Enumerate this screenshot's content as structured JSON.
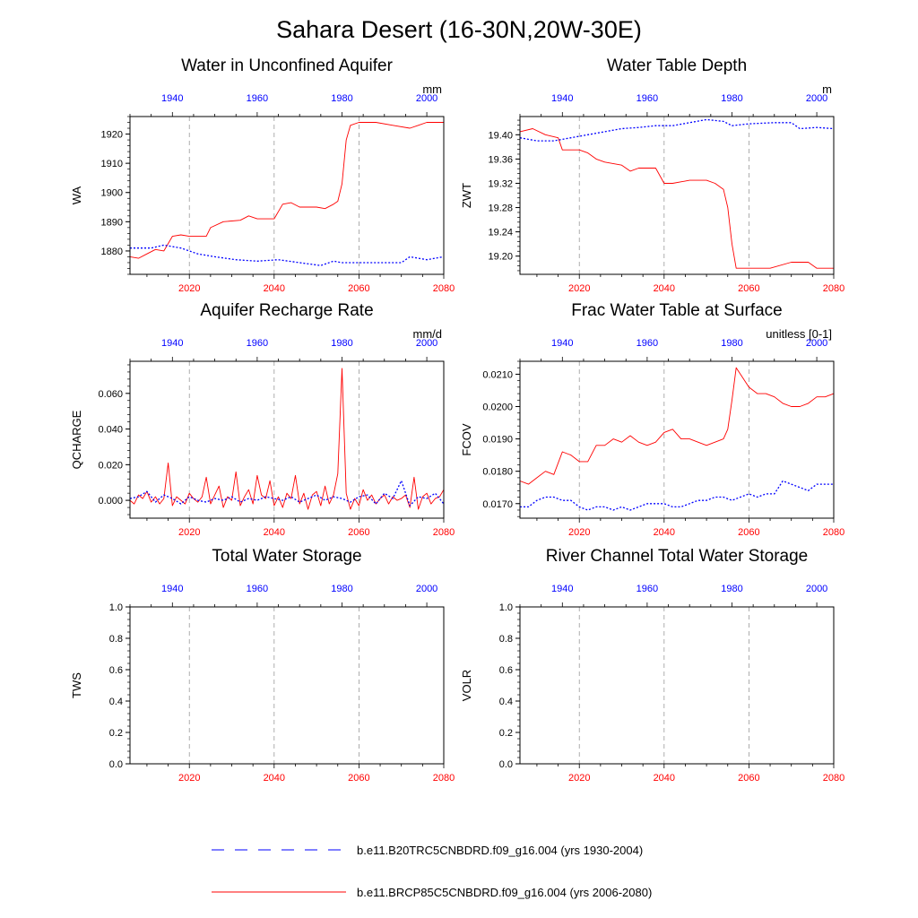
{
  "title": "Sahara Desert (16-30N,20W-30E)",
  "colors": {
    "blue": "#0000ff",
    "red": "#ff0000",
    "grid": "#999999",
    "axis": "#000000"
  },
  "legend": {
    "items": [
      {
        "label": "b.e11.B20TRC5CNBDRD.f09_g16.004 (yrs 1930-2004)",
        "color": "#0000ff",
        "style": "dashed"
      },
      {
        "label": "b.e11.BRCP85C5CNBDRD.f09_g16.004 (yrs 2006-2080)",
        "color": "#ff0000",
        "style": "solid"
      }
    ]
  },
  "chart_data": [
    {
      "type": "line",
      "title": "Water in Unconfined Aquifer",
      "ylabel": "WA",
      "units": "mm",
      "xlim_bottom": [
        2006,
        2080
      ],
      "xlim_top": [
        1930,
        2004
      ],
      "ylim": [
        1872,
        1926
      ],
      "yticks": [
        1880,
        1890,
        1900,
        1910,
        1920
      ],
      "ytick_labels": [
        "1880",
        "1890",
        "1900",
        "1910",
        "1920"
      ],
      "x_bottom_ticks": [
        2020,
        2040,
        2060,
        2080
      ],
      "x_top_ticks": [
        1940,
        1960,
        1980,
        2000
      ],
      "series": [
        {
          "name": "b.e11.BRCP85C5CNBDRD.f09_g16.004 (yrs 2006-2080)",
          "axis": "bottom",
          "color": "#ff0000",
          "dashed": false,
          "x": [
            2006,
            2008,
            2010,
            2012,
            2014,
            2016,
            2018,
            2020,
            2024,
            2025,
            2028,
            2032,
            2034,
            2036,
            2040,
            2042,
            2044,
            2046,
            2048,
            2050,
            2052,
            2054,
            2055,
            2056,
            2057,
            2058,
            2060,
            2064,
            2068,
            2072,
            2074,
            2076,
            2080
          ],
          "y": [
            1878,
            1877.5,
            1879,
            1880.5,
            1880,
            1885,
            1885.5,
            1885,
            1885,
            1888,
            1890,
            1890.5,
            1892,
            1891,
            1891,
            1896,
            1896.5,
            1895,
            1895,
            1895,
            1894.5,
            1896,
            1897,
            1903,
            1918,
            1923,
            1924,
            1924,
            1923,
            1922,
            1923,
            1924,
            1924
          ]
        },
        {
          "name": "b.e11.B20TRC5CNBDRD.f09_g16.004 (yrs 1930-2004)",
          "axis": "top",
          "color": "#0000ff",
          "dashed": true,
          "x": [
            1930,
            1935,
            1938,
            1942,
            1946,
            1950,
            1955,
            1960,
            1965,
            1970,
            1975,
            1978,
            1980,
            1985,
            1990,
            1994,
            1996,
            2000,
            2004
          ],
          "y": [
            1881,
            1881,
            1882,
            1881,
            1879,
            1878,
            1877,
            1876.5,
            1877,
            1876,
            1875,
            1876.5,
            1876,
            1876,
            1876,
            1876,
            1878,
            1877,
            1878
          ]
        }
      ]
    },
    {
      "type": "line",
      "title": "Water Table Depth",
      "ylabel": "ZWT",
      "units": "m",
      "xlim_bottom": [
        2006,
        2080
      ],
      "xlim_top": [
        1930,
        2004
      ],
      "ylim": [
        19.17,
        19.43
      ],
      "yticks": [
        19.2,
        19.24,
        19.28,
        19.32,
        19.36,
        19.4
      ],
      "ytick_labels": [
        "19.20",
        "19.24",
        "19.28",
        "19.32",
        "19.36",
        "19.40"
      ],
      "x_bottom_ticks": [
        2020,
        2040,
        2060,
        2080
      ],
      "x_top_ticks": [
        1940,
        1960,
        1980,
        2000
      ],
      "series": [
        {
          "name": "b.e11.BRCP85C5CNBDRD.f09_g16.004 (yrs 2006-2080)",
          "axis": "bottom",
          "color": "#ff0000",
          "dashed": false,
          "x": [
            2006,
            2009,
            2012,
            2015,
            2016,
            2020,
            2022,
            2024,
            2026,
            2030,
            2032,
            2034,
            2038,
            2040,
            2042,
            2046,
            2050,
            2052,
            2054,
            2055,
            2056,
            2057,
            2058,
            2060,
            2065,
            2070,
            2074,
            2076,
            2080
          ],
          "y": [
            19.405,
            19.41,
            19.4,
            19.395,
            19.375,
            19.375,
            19.37,
            19.36,
            19.355,
            19.35,
            19.34,
            19.345,
            19.345,
            19.32,
            19.32,
            19.325,
            19.325,
            19.32,
            19.31,
            19.28,
            19.22,
            19.18,
            19.18,
            19.18,
            19.18,
            19.19,
            19.19,
            19.18,
            19.18
          ]
        },
        {
          "name": "b.e11.B20TRC5CNBDRD.f09_g16.004 (yrs 1930-2004)",
          "axis": "top",
          "color": "#0000ff",
          "dashed": true,
          "x": [
            1930,
            1934,
            1938,
            1942,
            1946,
            1950,
            1954,
            1958,
            1962,
            1966,
            1970,
            1974,
            1978,
            1980,
            1984,
            1990,
            1994,
            1996,
            2000,
            2004
          ],
          "y": [
            19.395,
            19.39,
            19.39,
            19.395,
            19.4,
            19.405,
            19.41,
            19.412,
            19.415,
            19.415,
            19.42,
            19.425,
            19.422,
            19.415,
            19.418,
            19.42,
            19.42,
            19.41,
            19.412,
            19.41
          ]
        }
      ]
    },
    {
      "type": "line",
      "title": "Aquifer Recharge Rate",
      "ylabel": "QCHARGE",
      "units": "mm/d",
      "xlim_bottom": [
        2006,
        2080
      ],
      "xlim_top": [
        1930,
        2004
      ],
      "ylim": [
        -0.01,
        0.078
      ],
      "yticks": [
        0.0,
        0.02,
        0.04,
        0.06
      ],
      "ytick_labels": [
        "0.000",
        "0.020",
        "0.040",
        "0.060"
      ],
      "x_bottom_ticks": [
        2020,
        2040,
        2060,
        2080
      ],
      "x_top_ticks": [
        1940,
        1960,
        1980,
        2000
      ],
      "series": [
        {
          "name": "b.e11.BRCP85C5CNBDRD.f09_g16.004 (yrs 2006-2080)",
          "axis": "bottom",
          "color": "#ff0000",
          "dashed": false,
          "x": [
            2006,
            2007,
            2008,
            2009,
            2010,
            2011,
            2012,
            2013,
            2014,
            2015,
            2016,
            2017,
            2018,
            2019,
            2020,
            2021,
            2022,
            2023,
            2024,
            2025,
            2026,
            2027,
            2028,
            2029,
            2030,
            2031,
            2032,
            2033,
            2034,
            2035,
            2036,
            2037,
            2038,
            2039,
            2040,
            2041,
            2042,
            2043,
            2044,
            2045,
            2046,
            2047,
            2048,
            2049,
            2050,
            2051,
            2052,
            2053,
            2054,
            2055,
            2056,
            2057,
            2058,
            2059,
            2060,
            2061,
            2062,
            2063,
            2064,
            2065,
            2066,
            2067,
            2068,
            2069,
            2070,
            2071,
            2072,
            2073,
            2074,
            2075,
            2076,
            2077,
            2078,
            2079,
            2080
          ],
          "y": [
            0.0,
            -0.002,
            0.003,
            0.001,
            0.005,
            -0.001,
            0.002,
            -0.002,
            0.001,
            0.021,
            -0.003,
            0.002,
            0.0,
            -0.002,
            0.004,
            0.001,
            -0.001,
            0.002,
            0.013,
            -0.002,
            0.003,
            0.008,
            -0.004,
            0.002,
            0.0,
            0.016,
            -0.003,
            0.002,
            0.006,
            -0.002,
            0.014,
            0.003,
            0.001,
            0.011,
            -0.003,
            0.002,
            -0.004,
            0.004,
            0.001,
            0.014,
            -0.002,
            0.004,
            -0.005,
            0.003,
            0.005,
            -0.003,
            0.008,
            -0.002,
            0.003,
            0.015,
            0.074,
            0.004,
            -0.005,
            0.001,
            -0.003,
            0.006,
            0.0,
            0.003,
            -0.002,
            0.001,
            0.003,
            -0.002,
            0.002,
            0.0,
            0.001,
            0.003,
            -0.004,
            0.013,
            -0.005,
            0.002,
            0.004,
            -0.002,
            0.001,
            0.002,
            0.006
          ]
        },
        {
          "name": "b.e11.B20TRC5CNBDRD.f09_g16.004 (yrs 1930-2004)",
          "axis": "top",
          "color": "#0000ff",
          "dashed": true,
          "x": [
            1930,
            1932,
            1934,
            1936,
            1938,
            1940,
            1942,
            1944,
            1946,
            1948,
            1950,
            1952,
            1954,
            1956,
            1958,
            1960,
            1962,
            1964,
            1966,
            1968,
            1970,
            1972,
            1974,
            1976,
            1978,
            1980,
            1982,
            1984,
            1986,
            1988,
            1990,
            1992,
            1994,
            1996,
            1998,
            2000,
            2002,
            2004
          ],
          "y": [
            0.001,
            0.002,
            0.005,
            -0.001,
            0.003,
            0.001,
            -0.002,
            0.002,
            0.0,
            -0.001,
            0.001,
            0.0,
            0.002,
            -0.001,
            0.001,
            0.0,
            0.002,
            0.001,
            0.0,
            0.002,
            -0.001,
            0.001,
            0.003,
            0.0,
            0.002,
            0.001,
            -0.001,
            0.002,
            0.003,
            -0.002,
            0.004,
            0.001,
            0.011,
            -0.003,
            0.002,
            0.001,
            0.004,
            -0.002
          ]
        }
      ]
    },
    {
      "type": "line",
      "title": "Frac Water Table at Surface",
      "ylabel": "FCOV",
      "units": "unitless [0-1]",
      "xlim_bottom": [
        2006,
        2080
      ],
      "xlim_top": [
        1930,
        2004
      ],
      "ylim": [
        0.01655,
        0.0214
      ],
      "yticks": [
        0.017,
        0.018,
        0.019,
        0.02,
        0.021
      ],
      "ytick_labels": [
        "0.0170",
        "0.0180",
        "0.0190",
        "0.0200",
        "0.0210"
      ],
      "x_bottom_ticks": [
        2020,
        2040,
        2060,
        2080
      ],
      "x_top_ticks": [
        1940,
        1960,
        1980,
        2000
      ],
      "series": [
        {
          "name": "b.e11.BRCP85C5CNBDRD.f09_g16.004 (yrs 2006-2080)",
          "axis": "bottom",
          "color": "#ff0000",
          "dashed": false,
          "x": [
            2006,
            2008,
            2010,
            2012,
            2014,
            2016,
            2018,
            2020,
            2022,
            2024,
            2026,
            2028,
            2030,
            2032,
            2034,
            2036,
            2038,
            2040,
            2042,
            2044,
            2046,
            2048,
            2050,
            2052,
            2054,
            2055,
            2056,
            2057,
            2058,
            2060,
            2062,
            2064,
            2066,
            2068,
            2070,
            2072,
            2074,
            2076,
            2078,
            2080
          ],
          "y": [
            0.0177,
            0.0176,
            0.0178,
            0.018,
            0.0179,
            0.0186,
            0.0185,
            0.0183,
            0.0183,
            0.0188,
            0.0188,
            0.019,
            0.0189,
            0.0191,
            0.0189,
            0.0188,
            0.0189,
            0.0192,
            0.0193,
            0.019,
            0.019,
            0.0189,
            0.0188,
            0.0189,
            0.019,
            0.0193,
            0.0202,
            0.0212,
            0.021,
            0.0206,
            0.0204,
            0.0204,
            0.0203,
            0.0201,
            0.02,
            0.02,
            0.0201,
            0.0203,
            0.0203,
            0.0204
          ]
        },
        {
          "name": "b.e11.B20TRC5CNBDRD.f09_g16.004 (yrs 1930-2004)",
          "axis": "top",
          "color": "#0000ff",
          "dashed": true,
          "x": [
            1930,
            1932,
            1934,
            1936,
            1938,
            1940,
            1942,
            1944,
            1946,
            1948,
            1950,
            1952,
            1954,
            1956,
            1958,
            1960,
            1962,
            1964,
            1966,
            1968,
            1970,
            1972,
            1974,
            1976,
            1978,
            1980,
            1982,
            1984,
            1986,
            1988,
            1990,
            1992,
            1994,
            1996,
            1998,
            2000,
            2002,
            2004
          ],
          "y": [
            0.0169,
            0.0169,
            0.0171,
            0.0172,
            0.0172,
            0.0171,
            0.0171,
            0.0169,
            0.0168,
            0.0169,
            0.0169,
            0.0168,
            0.0169,
            0.0168,
            0.0169,
            0.017,
            0.017,
            0.017,
            0.0169,
            0.0169,
            0.017,
            0.0171,
            0.0171,
            0.0172,
            0.0172,
            0.0171,
            0.0172,
            0.0173,
            0.0172,
            0.0173,
            0.0173,
            0.0177,
            0.0176,
            0.0175,
            0.0174,
            0.0176,
            0.0176,
            0.0176
          ]
        }
      ]
    },
    {
      "type": "line",
      "title": "Total Water Storage",
      "ylabel": "TWS",
      "units": "",
      "xlim_bottom": [
        2006,
        2080
      ],
      "xlim_top": [
        1930,
        2004
      ],
      "ylim": [
        0,
        1
      ],
      "yticks": [
        0,
        0.2,
        0.4,
        0.6,
        0.8,
        1.0
      ],
      "ytick_labels": [
        "0.0",
        "0.2",
        "0.4",
        "0.6",
        "0.8",
        "1.0"
      ],
      "x_bottom_ticks": [
        2020,
        2040,
        2060,
        2080
      ],
      "x_top_ticks": [
        1940,
        1960,
        1980,
        2000
      ],
      "series": []
    },
    {
      "type": "line",
      "title": "River Channel Total Water Storage",
      "ylabel": "VOLR",
      "units": "",
      "xlim_bottom": [
        2006,
        2080
      ],
      "xlim_top": [
        1930,
        2004
      ],
      "ylim": [
        0,
        1
      ],
      "yticks": [
        0,
        0.2,
        0.4,
        0.6,
        0.8,
        1.0
      ],
      "ytick_labels": [
        "0.0",
        "0.2",
        "0.4",
        "0.6",
        "0.8",
        "1.0"
      ],
      "x_bottom_ticks": [
        2020,
        2040,
        2060,
        2080
      ],
      "x_top_ticks": [
        1940,
        1960,
        1980,
        2000
      ],
      "series": []
    }
  ]
}
